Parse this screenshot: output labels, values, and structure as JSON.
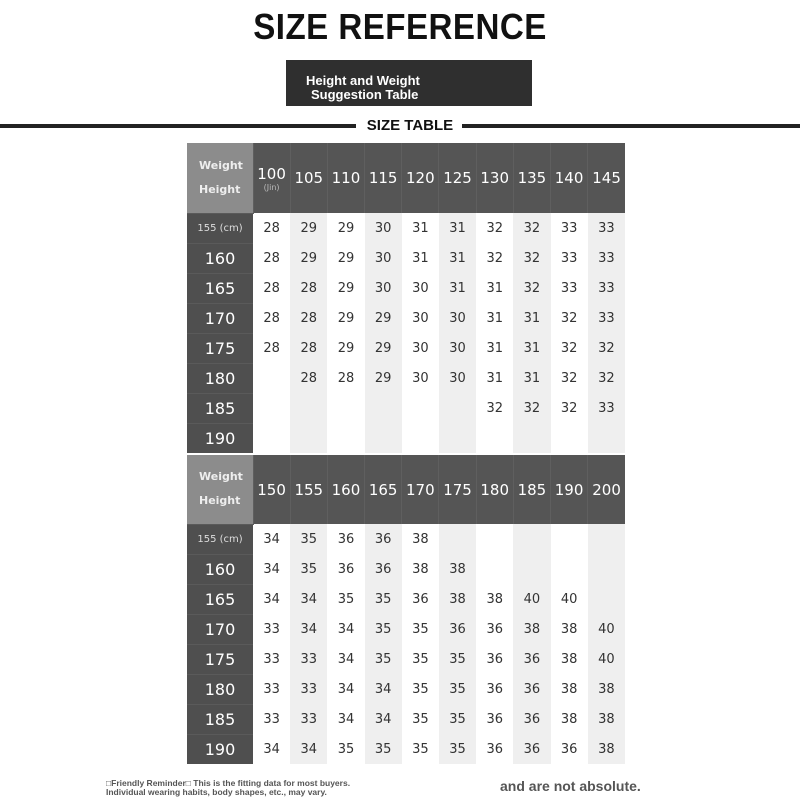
{
  "title": "SIZE REFERENCE",
  "subtitle": [
    "Height and Weight",
    "Suggestion Table"
  ],
  "section_label": "SIZE TABLE",
  "corner": {
    "weight": "Weight",
    "height": "Height"
  },
  "unit_weight": "(Jin)",
  "tables": [
    {
      "weights": [
        "100",
        "105",
        "110",
        "115",
        "120",
        "125",
        "130",
        "135",
        "140",
        "145"
      ],
      "heights": [
        "155 (cm)",
        "160",
        "165",
        "170",
        "175",
        "180",
        "185",
        "190"
      ],
      "rows": [
        [
          "28",
          "29",
          "29",
          "30",
          "31",
          "31",
          "32",
          "32",
          "33",
          "33"
        ],
        [
          "28",
          "29",
          "29",
          "30",
          "31",
          "31",
          "32",
          "32",
          "33",
          "33"
        ],
        [
          "28",
          "28",
          "29",
          "30",
          "30",
          "31",
          "31",
          "32",
          "33",
          "33"
        ],
        [
          "28",
          "28",
          "29",
          "29",
          "30",
          "30",
          "31",
          "31",
          "32",
          "33"
        ],
        [
          "28",
          "28",
          "29",
          "29",
          "30",
          "30",
          "31",
          "31",
          "32",
          "32"
        ],
        [
          "",
          "28",
          "28",
          "29",
          "30",
          "30",
          "31",
          "31",
          "32",
          "32"
        ],
        [
          "",
          "",
          "",
          "",
          "",
          "",
          "32",
          "32",
          "32",
          "33"
        ],
        [
          "",
          "",
          "",
          "",
          "",
          "",
          "",
          "",
          "",
          ""
        ]
      ]
    },
    {
      "weights": [
        "150",
        "155",
        "160",
        "165",
        "170",
        "175",
        "180",
        "185",
        "190",
        "200"
      ],
      "heights": [
        "155 (cm)",
        "160",
        "165",
        "170",
        "175",
        "180",
        "185",
        "190"
      ],
      "rows": [
        [
          "34",
          "35",
          "36",
          "36",
          "38",
          "",
          "",
          "",
          "",
          ""
        ],
        [
          "34",
          "35",
          "36",
          "36",
          "38",
          "38",
          "",
          "",
          "",
          ""
        ],
        [
          "34",
          "34",
          "35",
          "35",
          "36",
          "38",
          "38",
          "40",
          "40",
          ""
        ],
        [
          "33",
          "34",
          "34",
          "35",
          "35",
          "36",
          "36",
          "38",
          "38",
          "40"
        ],
        [
          "33",
          "33",
          "34",
          "35",
          "35",
          "35",
          "36",
          "36",
          "38",
          "40"
        ],
        [
          "33",
          "33",
          "34",
          "34",
          "35",
          "35",
          "36",
          "36",
          "38",
          "38"
        ],
        [
          "33",
          "33",
          "34",
          "34",
          "35",
          "35",
          "36",
          "36",
          "38",
          "38"
        ],
        [
          "34",
          "34",
          "35",
          "35",
          "35",
          "35",
          "36",
          "36",
          "36",
          "38"
        ]
      ]
    }
  ],
  "reminder": [
    "□Friendly Reminder□ This is the fitting data for most buyers.",
    "Individual wearing habits, body shapes, etc., may vary."
  ],
  "reminder_tail": "and are not absolute."
}
